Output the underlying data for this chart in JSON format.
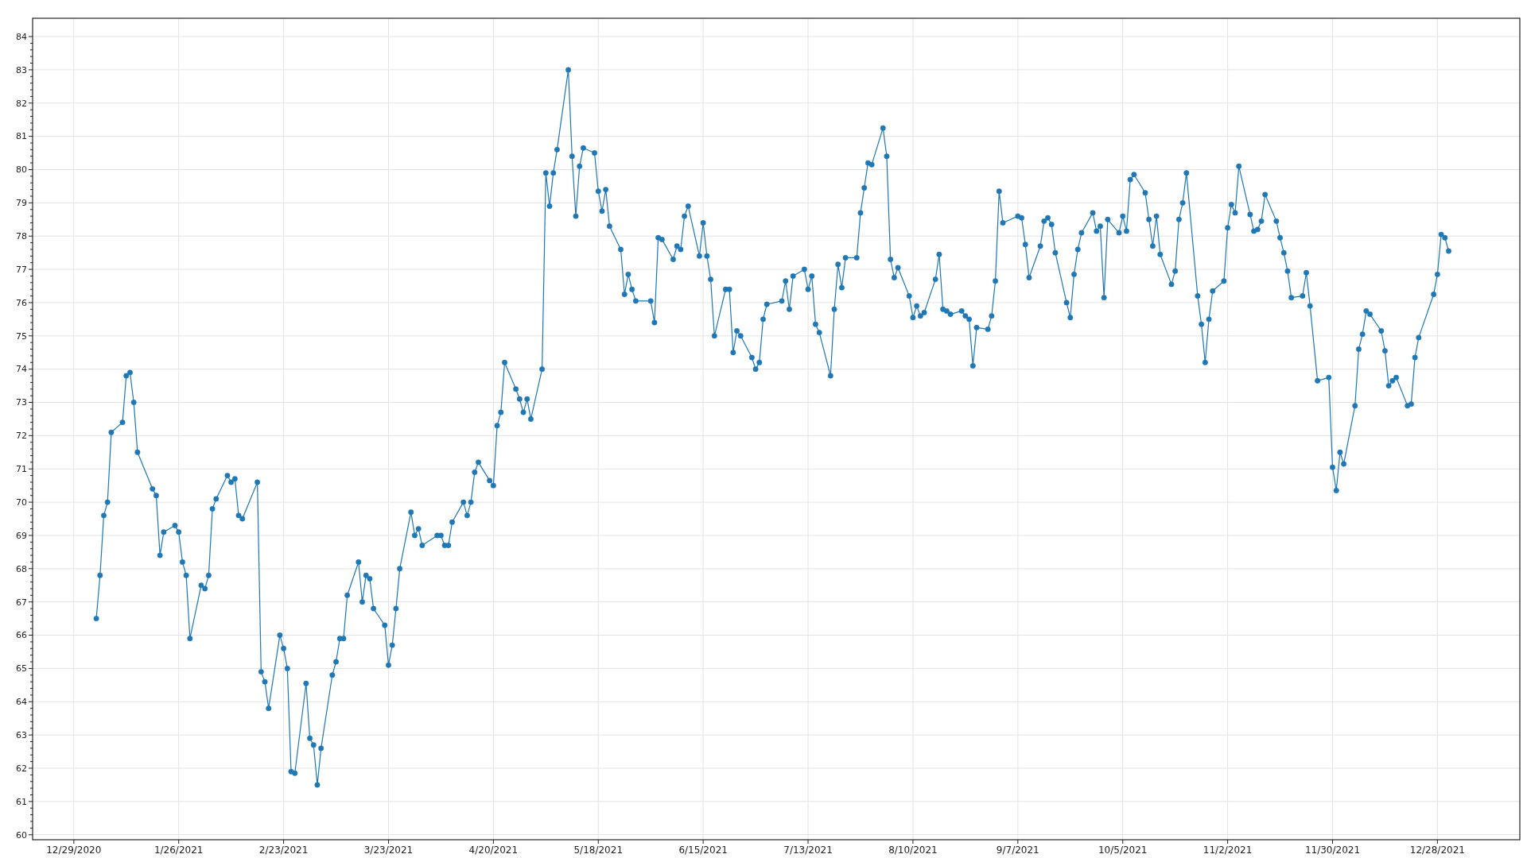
{
  "chart_data": {
    "type": "line",
    "xlim": [
      "2020-12-18",
      "2022-01-19"
    ],
    "ylim": [
      59.85,
      84.55
    ],
    "xticks": [
      {
        "value": "2020-12-29",
        "label": "12/29/2020"
      },
      {
        "value": "2021-01-26",
        "label": "1/26/2021"
      },
      {
        "value": "2021-02-23",
        "label": "2/23/2021"
      },
      {
        "value": "2021-03-23",
        "label": "3/23/2021"
      },
      {
        "value": "2021-04-20",
        "label": "4/20/2021"
      },
      {
        "value": "2021-05-18",
        "label": "5/18/2021"
      },
      {
        "value": "2021-06-15",
        "label": "6/15/2021"
      },
      {
        "value": "2021-07-13",
        "label": "7/13/2021"
      },
      {
        "value": "2021-08-10",
        "label": "8/10/2021"
      },
      {
        "value": "2021-09-07",
        "label": "9/7/2021"
      },
      {
        "value": "2021-10-05",
        "label": "10/5/2021"
      },
      {
        "value": "2021-11-02",
        "label": "11/2/2021"
      },
      {
        "value": "2021-11-30",
        "label": "11/30/2021"
      },
      {
        "value": "2021-12-28",
        "label": "12/28/2021"
      }
    ],
    "yticks": [
      60,
      61,
      62,
      63,
      64,
      65,
      66,
      67,
      68,
      69,
      70,
      71,
      72,
      73,
      74,
      75,
      76,
      77,
      78,
      79,
      80,
      81,
      82,
      83,
      84
    ],
    "grid": true,
    "marker": "circle",
    "line_style": "solid",
    "x": [
      "2021-01-04",
      "2021-01-05",
      "2021-01-06",
      "2021-01-07",
      "2021-01-08",
      "2021-01-11",
      "2021-01-12",
      "2021-01-13",
      "2021-01-14",
      "2021-01-15",
      "2021-01-19",
      "2021-01-20",
      "2021-01-21",
      "2021-01-22",
      "2021-01-25",
      "2021-01-26",
      "2021-01-27",
      "2021-01-28",
      "2021-01-29",
      "2021-02-01",
      "2021-02-02",
      "2021-02-03",
      "2021-02-04",
      "2021-02-05",
      "2021-02-08",
      "2021-02-09",
      "2021-02-10",
      "2021-02-11",
      "2021-02-12",
      "2021-02-16",
      "2021-02-17",
      "2021-02-18",
      "2021-02-19",
      "2021-02-22",
      "2021-02-23",
      "2021-02-24",
      "2021-02-25",
      "2021-02-26",
      "2021-03-01",
      "2021-03-02",
      "2021-03-03",
      "2021-03-04",
      "2021-03-05",
      "2021-03-08",
      "2021-03-09",
      "2021-03-10",
      "2021-03-11",
      "2021-03-12",
      "2021-03-15",
      "2021-03-16",
      "2021-03-17",
      "2021-03-18",
      "2021-03-19",
      "2021-03-22",
      "2021-03-23",
      "2021-03-24",
      "2021-03-25",
      "2021-03-26",
      "2021-03-29",
      "2021-03-30",
      "2021-03-31",
      "2021-04-01",
      "2021-04-05",
      "2021-04-06",
      "2021-04-07",
      "2021-04-08",
      "2021-04-09",
      "2021-04-12",
      "2021-04-13",
      "2021-04-14",
      "2021-04-15",
      "2021-04-16",
      "2021-04-19",
      "2021-04-20",
      "2021-04-21",
      "2021-04-22",
      "2021-04-23",
      "2021-04-26",
      "2021-04-27",
      "2021-04-28",
      "2021-04-29",
      "2021-04-30",
      "2021-05-03",
      "2021-05-04",
      "2021-05-05",
      "2021-05-06",
      "2021-05-07",
      "2021-05-10",
      "2021-05-11",
      "2021-05-12",
      "2021-05-13",
      "2021-05-14",
      "2021-05-17",
      "2021-05-18",
      "2021-05-19",
      "2021-05-20",
      "2021-05-21",
      "2021-05-24",
      "2021-05-25",
      "2021-05-26",
      "2021-05-27",
      "2021-05-28",
      "2021-06-01",
      "2021-06-02",
      "2021-06-03",
      "2021-06-04",
      "2021-06-07",
      "2021-06-08",
      "2021-06-09",
      "2021-06-10",
      "2021-06-11",
      "2021-06-14",
      "2021-06-15",
      "2021-06-16",
      "2021-06-17",
      "2021-06-18",
      "2021-06-21",
      "2021-06-22",
      "2021-06-23",
      "2021-06-24",
      "2021-06-25",
      "2021-06-28",
      "2021-06-29",
      "2021-06-30",
      "2021-07-01",
      "2021-07-02",
      "2021-07-06",
      "2021-07-07",
      "2021-07-08",
      "2021-07-09",
      "2021-07-12",
      "2021-07-13",
      "2021-07-14",
      "2021-07-15",
      "2021-07-16",
      "2021-07-19",
      "2021-07-20",
      "2021-07-21",
      "2021-07-22",
      "2021-07-23",
      "2021-07-26",
      "2021-07-27",
      "2021-07-28",
      "2021-07-29",
      "2021-07-30",
      "2021-08-02",
      "2021-08-03",
      "2021-08-04",
      "2021-08-05",
      "2021-08-06",
      "2021-08-09",
      "2021-08-10",
      "2021-08-11",
      "2021-08-12",
      "2021-08-13",
      "2021-08-16",
      "2021-08-17",
      "2021-08-18",
      "2021-08-19",
      "2021-08-20",
      "2021-08-23",
      "2021-08-24",
      "2021-08-25",
      "2021-08-26",
      "2021-08-27",
      "2021-08-30",
      "2021-08-31",
      "2021-09-01",
      "2021-09-02",
      "2021-09-03",
      "2021-09-07",
      "2021-09-08",
      "2021-09-09",
      "2021-09-10",
      "2021-09-13",
      "2021-09-14",
      "2021-09-15",
      "2021-09-16",
      "2021-09-17",
      "2021-09-20",
      "2021-09-21",
      "2021-09-22",
      "2021-09-23",
      "2021-09-24",
      "2021-09-27",
      "2021-09-28",
      "2021-09-29",
      "2021-09-30",
      "2021-10-01",
      "2021-10-04",
      "2021-10-05",
      "2021-10-06",
      "2021-10-07",
      "2021-10-08",
      "2021-10-11",
      "2021-10-12",
      "2021-10-13",
      "2021-10-14",
      "2021-10-15",
      "2021-10-18",
      "2021-10-19",
      "2021-10-20",
      "2021-10-21",
      "2021-10-22",
      "2021-10-25",
      "2021-10-26",
      "2021-10-27",
      "2021-10-28",
      "2021-10-29",
      "2021-11-01",
      "2021-11-02",
      "2021-11-03",
      "2021-11-04",
      "2021-11-05",
      "2021-11-08",
      "2021-11-09",
      "2021-11-10",
      "2021-11-11",
      "2021-11-12",
      "2021-11-15",
      "2021-11-16",
      "2021-11-17",
      "2021-11-18",
      "2021-11-19",
      "2021-11-22",
      "2021-11-23",
      "2021-11-24",
      "2021-11-26",
      "2021-11-29",
      "2021-11-30",
      "2021-12-01",
      "2021-12-02",
      "2021-12-03",
      "2021-12-06",
      "2021-12-07",
      "2021-12-08",
      "2021-12-09",
      "2021-12-10",
      "2021-12-13",
      "2021-12-14",
      "2021-12-15",
      "2021-12-16",
      "2021-12-17",
      "2021-12-20",
      "2021-12-21",
      "2021-12-22",
      "2021-12-23",
      "2021-12-27",
      "2021-12-28",
      "2021-12-29",
      "2021-12-30",
      "2021-12-31"
    ],
    "series": [
      {
        "color": "#1f77b4",
        "values": [
          66.5,
          67.8,
          69.6,
          70.0,
          72.1,
          72.4,
          73.8,
          73.9,
          73.0,
          71.5,
          70.4,
          70.2,
          68.4,
          69.1,
          69.3,
          69.1,
          68.2,
          67.8,
          65.9,
          67.5,
          67.4,
          67.8,
          69.8,
          70.1,
          70.8,
          70.6,
          70.7,
          69.6,
          69.5,
          70.6,
          64.9,
          64.6,
          63.8,
          66.0,
          65.6,
          65.0,
          61.9,
          61.85,
          64.55,
          62.9,
          62.7,
          61.5,
          62.6,
          64.8,
          65.2,
          65.9,
          65.9,
          67.2,
          68.2,
          67.0,
          67.8,
          67.7,
          66.8,
          66.3,
          65.1,
          65.7,
          66.8,
          68.0,
          69.7,
          69.0,
          69.2,
          68.7,
          69.0,
          69.0,
          68.7,
          68.7,
          69.4,
          70.0,
          69.6,
          70.0,
          70.9,
          71.2,
          70.65,
          70.5,
          72.3,
          72.7,
          74.2,
          73.4,
          73.1,
          72.7,
          73.1,
          72.5,
          74.0,
          79.9,
          78.9,
          79.9,
          80.6,
          83.0,
          80.4,
          78.6,
          80.1,
          80.65,
          80.5,
          79.35,
          78.75,
          79.4,
          78.3,
          77.6,
          76.25,
          76.85,
          76.4,
          76.05,
          76.05,
          75.4,
          77.95,
          77.9,
          77.3,
          77.7,
          77.6,
          78.6,
          78.9,
          77.4,
          78.4,
          77.4,
          76.7,
          75.0,
          76.4,
          76.4,
          74.5,
          75.15,
          75.0,
          74.35,
          74.0,
          74.2,
          75.5,
          75.95,
          76.05,
          76.65,
          75.8,
          76.8,
          77.0,
          76.4,
          76.8,
          75.35,
          75.1,
          73.8,
          75.8,
          77.15,
          76.45,
          77.35,
          77.35,
          78.7,
          79.45,
          80.2,
          80.15,
          81.25,
          80.4,
          77.3,
          76.75,
          77.05,
          76.2,
          75.55,
          75.9,
          75.6,
          75.7,
          76.7,
          77.45,
          75.8,
          75.75,
          75.65,
          75.75,
          75.6,
          75.5,
          74.1,
          75.25,
          75.2,
          75.6,
          76.65,
          79.35,
          78.4,
          78.6,
          78.55,
          77.75,
          76.75,
          77.7,
          78.45,
          78.55,
          78.35,
          77.5,
          76.0,
          75.55,
          76.85,
          77.6,
          78.1,
          78.7,
          78.15,
          78.3,
          76.15,
          78.5,
          78.1,
          78.6,
          78.15,
          79.7,
          79.85,
          79.3,
          78.5,
          77.7,
          78.6,
          77.45,
          76.55,
          76.95,
          78.5,
          79.0,
          79.9,
          76.2,
          75.35,
          74.2,
          75.5,
          76.35,
          76.65,
          78.25,
          78.95,
          78.7,
          80.1,
          78.65,
          78.15,
          78.2,
          78.45,
          79.25,
          78.45,
          77.95,
          77.5,
          76.95,
          76.15,
          76.2,
          76.9,
          75.9,
          73.65,
          73.75,
          71.05,
          70.35,
          71.5,
          71.15,
          72.9,
          74.6,
          75.05,
          75.75,
          75.65,
          75.15,
          74.55,
          73.5,
          73.65,
          73.75,
          72.9,
          72.95,
          74.35,
          74.95,
          76.25,
          76.85,
          78.05,
          77.95,
          77.55
        ]
      }
    ]
  }
}
